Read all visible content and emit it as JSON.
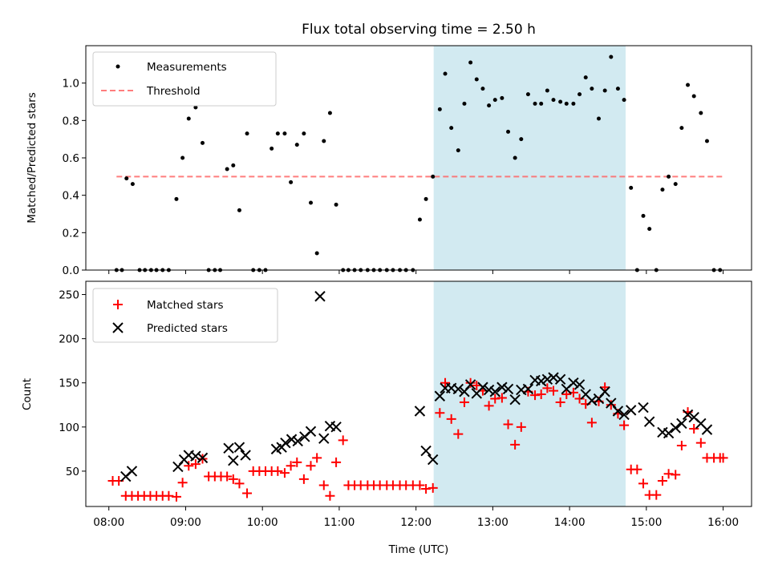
{
  "chart_data": [
    {
      "type": "scatter",
      "title": "Flux total observing time = 2.50 h",
      "xlabel": "",
      "ylabel": "Matched/Predicted stars",
      "ylim": [
        0,
        1.2
      ],
      "yticks": [
        "0.0",
        "0.2",
        "0.4",
        "0.6",
        "0.8",
        "1.0"
      ],
      "legend_position": "top-left",
      "highlight": {
        "x_start": 12.23,
        "x_end": 14.73,
        "color": "#add8e6"
      },
      "threshold": {
        "name": "Threshold",
        "value": 0.5,
        "x_start": 8.1,
        "x_end": 16.0,
        "color": "#ff6666"
      },
      "series": [
        {
          "name": "Measurements",
          "color": "#000000",
          "x": [
            8.1,
            8.17,
            8.23,
            8.31,
            8.4,
            8.47,
            8.55,
            8.62,
            8.7,
            8.78,
            8.88,
            8.96,
            9.04,
            9.13,
            9.22,
            9.3,
            9.38,
            9.45,
            9.54,
            9.62,
            9.7,
            9.8,
            9.88,
            9.96,
            10.04,
            10.12,
            10.2,
            10.29,
            10.37,
            10.45,
            10.54,
            10.63,
            10.71,
            10.8,
            10.88,
            10.96,
            11.05,
            11.12,
            11.2,
            11.28,
            11.37,
            11.45,
            11.53,
            11.62,
            11.7,
            11.79,
            11.87,
            11.96,
            12.05,
            12.13,
            12.22,
            12.31,
            12.38,
            12.46,
            12.55,
            12.63,
            12.71,
            12.79,
            12.87,
            12.95,
            13.03,
            13.12,
            13.2,
            13.29,
            13.37,
            13.46,
            13.55,
            13.63,
            13.71,
            13.79,
            13.88,
            13.96,
            14.05,
            14.13,
            14.21,
            14.29,
            14.38,
            14.46,
            14.54,
            14.63,
            14.71,
            14.8,
            14.88,
            14.96,
            15.04,
            15.13,
            15.21,
            15.29,
            15.38,
            15.46,
            15.54,
            15.62,
            15.71,
            15.79,
            15.88,
            15.96
          ],
          "y": [
            0,
            0,
            0.49,
            0.46,
            0,
            0,
            0,
            0,
            0,
            0,
            0.38,
            0.6,
            0.81,
            0.87,
            0.68,
            0,
            0,
            0,
            0.54,
            0.56,
            0.32,
            0.73,
            0,
            0,
            0,
            0.65,
            0.73,
            0.73,
            0.47,
            0.67,
            0.73,
            0.36,
            0.09,
            0.69,
            0.84,
            0.35,
            0,
            0,
            0,
            0,
            0,
            0,
            0,
            0,
            0,
            0,
            0,
            0,
            0.27,
            0.38,
            0.5,
            0.86,
            1.05,
            0.76,
            0.64,
            0.89,
            1.11,
            1.02,
            0.97,
            0.88,
            0.91,
            0.92,
            0.74,
            0.6,
            0.7,
            0.94,
            0.89,
            0.89,
            0.96,
            0.91,
            0.9,
            0.89,
            0.89,
            0.94,
            1.03,
            0.97,
            0.81,
            0.96,
            1.14,
            0.97,
            0.91,
            0.44,
            0,
            0.29,
            0.22,
            0,
            0.43,
            0.5,
            0.46,
            0.76,
            0.99,
            0.93,
            0.84,
            0.69,
            0,
            0
          ]
        }
      ]
    },
    {
      "type": "scatter",
      "title": "",
      "xlabel": "Time (UTC)",
      "ylabel": "Count",
      "ylim": [
        10,
        265
      ],
      "yticks": [
        "50",
        "100",
        "150",
        "200",
        "250"
      ],
      "xlim": [
        7.7,
        16.37
      ],
      "xticks": [
        "08:00",
        "09:00",
        "10:00",
        "11:00",
        "12:00",
        "13:00",
        "14:00",
        "15:00",
        "16:00"
      ],
      "legend_position": "top-left",
      "highlight": {
        "x_start": 12.23,
        "x_end": 14.73,
        "color": "#add8e6"
      },
      "series": [
        {
          "name": "Matched stars",
          "color": "#ff0000",
          "x": [
            8.05,
            8.13,
            8.22,
            8.3,
            8.38,
            8.46,
            8.54,
            8.62,
            8.7,
            8.78,
            8.88,
            8.96,
            9.04,
            9.13,
            9.22,
            9.3,
            9.38,
            9.46,
            9.54,
            9.62,
            9.7,
            9.8,
            9.88,
            9.96,
            10.04,
            10.12,
            10.2,
            10.29,
            10.37,
            10.45,
            10.54,
            10.63,
            10.71,
            10.8,
            10.88,
            10.96,
            11.05,
            11.12,
            11.2,
            11.28,
            11.37,
            11.45,
            11.53,
            11.62,
            11.7,
            11.79,
            11.87,
            11.96,
            12.05,
            12.13,
            12.22,
            12.31,
            12.38,
            12.46,
            12.55,
            12.63,
            12.71,
            12.79,
            12.87,
            12.95,
            13.03,
            13.12,
            13.2,
            13.29,
            13.37,
            13.46,
            13.55,
            13.63,
            13.71,
            13.79,
            13.88,
            13.96,
            14.05,
            14.13,
            14.21,
            14.29,
            14.38,
            14.46,
            14.54,
            14.63,
            14.71,
            14.8,
            14.88,
            14.96,
            15.04,
            15.13,
            15.21,
            15.29,
            15.38,
            15.46,
            15.54,
            15.62,
            15.71,
            15.79,
            15.88,
            15.96,
            16.0
          ],
          "y": [
            39,
            39,
            22,
            22,
            22,
            22,
            22,
            22,
            22,
            22,
            21,
            37,
            56,
            58,
            64,
            44,
            44,
            44,
            44,
            41,
            36,
            25,
            50,
            50,
            50,
            50,
            50,
            48,
            56,
            60,
            41,
            56,
            65,
            34,
            22,
            60,
            85,
            34,
            34,
            34,
            34,
            34,
            34,
            34,
            34,
            34,
            34,
            34,
            34,
            30,
            31,
            116,
            150,
            109,
            92,
            128,
            150,
            147,
            141,
            124,
            132,
            133,
            103,
            80,
            100,
            140,
            136,
            137,
            144,
            141,
            128,
            137,
            139,
            132,
            126,
            105,
            129,
            145,
            125,
            115,
            102,
            52,
            52,
            36,
            23,
            23,
            39,
            47,
            46,
            79,
            117,
            98,
            82,
            65,
            65,
            65,
            65
          ]
        },
        {
          "name": "Predicted stars",
          "color": "#000000",
          "x": [
            8.22,
            8.3,
            8.9,
            8.98,
            9.04,
            9.13,
            9.22,
            9.56,
            9.62,
            9.7,
            9.78,
            10.18,
            10.25,
            10.3,
            10.38,
            10.46,
            10.55,
            10.63,
            10.75,
            10.8,
            10.88,
            10.96,
            12.05,
            12.13,
            12.22,
            12.31,
            12.38,
            12.46,
            12.55,
            12.63,
            12.71,
            12.79,
            12.87,
            12.95,
            13.03,
            13.12,
            13.2,
            13.29,
            13.37,
            13.46,
            13.55,
            13.63,
            13.71,
            13.79,
            13.88,
            13.96,
            14.05,
            14.13,
            14.21,
            14.29,
            14.38,
            14.46,
            14.54,
            14.63,
            14.71,
            14.8,
            14.96,
            15.04,
            15.21,
            15.29,
            15.38,
            15.46,
            15.54,
            15.62,
            15.71,
            15.79
          ],
          "y": [
            44,
            50,
            55,
            63,
            68,
            67,
            65,
            76,
            62,
            77,
            68,
            75,
            77,
            82,
            86,
            84,
            89,
            95,
            248,
            87,
            101,
            100,
            118,
            73,
            63,
            135,
            144,
            144,
            143,
            140,
            148,
            138,
            145,
            142,
            140,
            145,
            143,
            131,
            142,
            143,
            153,
            152,
            154,
            156,
            154,
            143,
            150,
            148,
            137,
            130,
            132,
            140,
            127,
            118,
            114,
            119,
            122,
            106,
            94,
            93,
            99,
            104,
            114,
            111,
            104,
            97
          ]
        }
      ]
    }
  ]
}
